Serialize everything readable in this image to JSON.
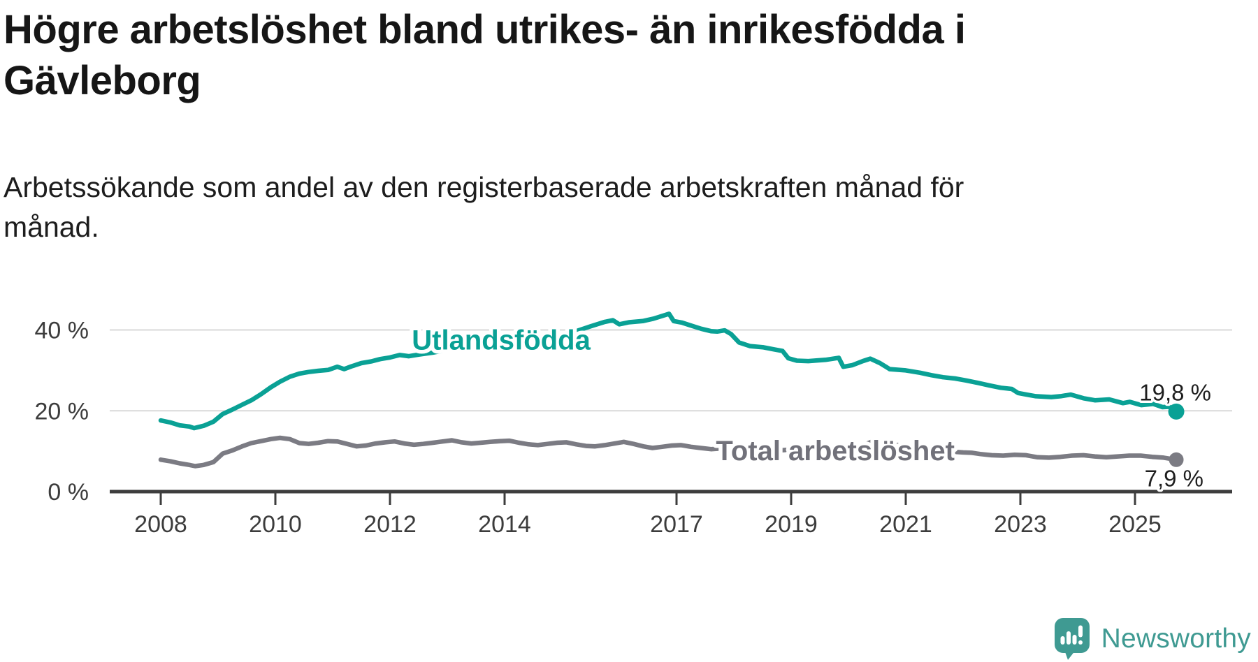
{
  "header": {
    "title_lines": [
      "Högre arbetslöshet bland utrikes- än inrikesfödda i",
      "Gävleborg"
    ],
    "subtitle_lines": [
      "Arbetssökande som andel av den registerbaserade arbetskraften månad för",
      "månad."
    ]
  },
  "branding": {
    "logo_text": "Newsworthy",
    "logo_icon": "newsworthy-speech-bubble-bar-chart-icon",
    "brand_color": "#3f9a92"
  },
  "chart_data": {
    "type": "line",
    "unit": "%",
    "grid": "horizontal-only",
    "x_axis": {
      "ticks": [
        {
          "year": 2008,
          "label": "2008"
        },
        {
          "year": 2010,
          "label": "2010"
        },
        {
          "year": 2012,
          "label": "2012"
        },
        {
          "year": 2014,
          "label": "2014"
        },
        {
          "year": 2017,
          "label": "2017"
        },
        {
          "year": 2019,
          "label": "2019"
        },
        {
          "year": 2021,
          "label": "2021"
        },
        {
          "year": 2023,
          "label": "2023"
        },
        {
          "year": 2025,
          "label": "2025"
        }
      ],
      "range": [
        2007.1,
        2026.7
      ]
    },
    "y_axis": {
      "ticks": [
        {
          "value": 0,
          "label": "0 %"
        },
        {
          "value": 20,
          "label": "20 %"
        },
        {
          "value": 40,
          "label": "40 %"
        }
      ],
      "range": [
        0,
        54
      ]
    },
    "series": [
      {
        "id": "total-arbetsloshet",
        "name": "Total arbetslöshet",
        "color": "#7b7b83",
        "label_color": "#71717a",
        "end_value": 7.9,
        "end_label": "7,9 %",
        "end_label_side": "below",
        "label_at": {
          "year": 2019.77,
          "pct": 7.75
        },
        "dot_radius": 10.5,
        "points": [
          [
            2008.0,
            7.9
          ],
          [
            2008.17,
            7.5
          ],
          [
            2008.33,
            7.0
          ],
          [
            2008.5,
            6.6
          ],
          [
            2008.6,
            6.3
          ],
          [
            2008.75,
            6.6
          ],
          [
            2008.92,
            7.3
          ],
          [
            2009.08,
            9.4
          ],
          [
            2009.25,
            10.2
          ],
          [
            2009.42,
            11.2
          ],
          [
            2009.58,
            12.0
          ],
          [
            2009.75,
            12.5
          ],
          [
            2009.92,
            13.0
          ],
          [
            2010.08,
            13.3
          ],
          [
            2010.25,
            13.0
          ],
          [
            2010.42,
            12.0
          ],
          [
            2010.58,
            11.8
          ],
          [
            2010.75,
            12.1
          ],
          [
            2010.92,
            12.5
          ],
          [
            2011.08,
            12.4
          ],
          [
            2011.25,
            11.8
          ],
          [
            2011.42,
            11.2
          ],
          [
            2011.58,
            11.4
          ],
          [
            2011.75,
            11.9
          ],
          [
            2011.92,
            12.2
          ],
          [
            2012.08,
            12.4
          ],
          [
            2012.25,
            11.9
          ],
          [
            2012.42,
            11.6
          ],
          [
            2012.58,
            11.8
          ],
          [
            2012.75,
            12.1
          ],
          [
            2012.92,
            12.4
          ],
          [
            2013.08,
            12.7
          ],
          [
            2013.25,
            12.2
          ],
          [
            2013.42,
            11.9
          ],
          [
            2013.58,
            12.1
          ],
          [
            2013.75,
            12.3
          ],
          [
            2013.92,
            12.5
          ],
          [
            2014.08,
            12.6
          ],
          [
            2014.25,
            12.1
          ],
          [
            2014.42,
            11.7
          ],
          [
            2014.58,
            11.5
          ],
          [
            2014.75,
            11.8
          ],
          [
            2014.92,
            12.1
          ],
          [
            2015.08,
            12.2
          ],
          [
            2015.25,
            11.7
          ],
          [
            2015.42,
            11.3
          ],
          [
            2015.58,
            11.2
          ],
          [
            2015.75,
            11.5
          ],
          [
            2015.92,
            11.9
          ],
          [
            2016.08,
            12.3
          ],
          [
            2016.25,
            11.8
          ],
          [
            2016.42,
            11.2
          ],
          [
            2016.58,
            10.8
          ],
          [
            2016.75,
            11.1
          ],
          [
            2016.92,
            11.4
          ],
          [
            2017.08,
            11.5
          ],
          [
            2017.25,
            11.1
          ],
          [
            2017.42,
            10.8
          ],
          [
            2017.6,
            10.5
          ],
          [
            2017.8,
            10.7
          ],
          [
            2018.0,
            11.0
          ],
          [
            2018.2,
            10.6
          ],
          [
            2018.4,
            10.2
          ],
          [
            2018.6,
            10.0
          ],
          [
            2018.8,
            10.2
          ],
          [
            2019.0,
            10.4
          ],
          [
            2019.2,
            10.1
          ],
          [
            2019.4,
            9.9
          ],
          [
            2019.6,
            9.8
          ],
          [
            2019.8,
            10.0
          ],
          [
            2020.0,
            10.2
          ],
          [
            2020.2,
            11.2
          ],
          [
            2020.4,
            12.3
          ],
          [
            2020.6,
            12.0
          ],
          [
            2020.8,
            11.6
          ],
          [
            2021.0,
            11.4
          ],
          [
            2021.2,
            11.0
          ],
          [
            2021.4,
            10.6
          ],
          [
            2021.6,
            10.2
          ],
          [
            2021.8,
            9.9
          ],
          [
            2022.0,
            9.7
          ],
          [
            2022.15,
            9.6
          ],
          [
            2022.3,
            9.3
          ],
          [
            2022.5,
            9.0
          ],
          [
            2022.7,
            8.9
          ],
          [
            2022.9,
            9.1
          ],
          [
            2023.1,
            9.0
          ],
          [
            2023.3,
            8.5
          ],
          [
            2023.5,
            8.4
          ],
          [
            2023.7,
            8.6
          ],
          [
            2023.9,
            8.9
          ],
          [
            2024.1,
            9.0
          ],
          [
            2024.3,
            8.7
          ],
          [
            2024.5,
            8.5
          ],
          [
            2024.7,
            8.7
          ],
          [
            2024.9,
            8.9
          ],
          [
            2025.1,
            8.9
          ],
          [
            2025.3,
            8.6
          ],
          [
            2025.5,
            8.4
          ],
          [
            2025.72,
            7.9
          ]
        ]
      },
      {
        "id": "utlandsfodda",
        "name": "Utlandsfödda",
        "color": "#0aa195",
        "label_color": "#0aa195",
        "end_value": 19.8,
        "end_label": "19,8 %",
        "end_label_side": "above",
        "label_at": {
          "year": 2013.94,
          "pct": 35.2
        },
        "dot_radius": 11.5,
        "points": [
          [
            2008.0,
            17.6
          ],
          [
            2008.17,
            17.1
          ],
          [
            2008.33,
            16.4
          ],
          [
            2008.5,
            16.1
          ],
          [
            2008.58,
            15.7
          ],
          [
            2008.75,
            16.3
          ],
          [
            2008.92,
            17.3
          ],
          [
            2009.08,
            19.2
          ],
          [
            2009.25,
            20.3
          ],
          [
            2009.42,
            21.5
          ],
          [
            2009.58,
            22.6
          ],
          [
            2009.75,
            24.1
          ],
          [
            2009.92,
            25.8
          ],
          [
            2010.08,
            27.2
          ],
          [
            2010.25,
            28.4
          ],
          [
            2010.42,
            29.2
          ],
          [
            2010.58,
            29.6
          ],
          [
            2010.75,
            29.9
          ],
          [
            2010.92,
            30.1
          ],
          [
            2011.08,
            30.9
          ],
          [
            2011.2,
            30.3
          ],
          [
            2011.33,
            31.0
          ],
          [
            2011.5,
            31.8
          ],
          [
            2011.67,
            32.2
          ],
          [
            2011.83,
            32.8
          ],
          [
            2012.0,
            33.2
          ],
          [
            2012.17,
            33.8
          ],
          [
            2012.33,
            33.5
          ],
          [
            2012.5,
            33.9
          ],
          [
            2012.75,
            34.4
          ],
          [
            2013.0,
            35.1
          ],
          [
            2013.25,
            35.4
          ],
          [
            2013.5,
            35.9
          ],
          [
            2013.75,
            36.3
          ],
          [
            2014.0,
            36.9
          ],
          [
            2014.25,
            37.1
          ],
          [
            2014.5,
            37.5
          ],
          [
            2014.75,
            37.9
          ],
          [
            2015.0,
            38.6
          ],
          [
            2015.25,
            39.7
          ],
          [
            2015.5,
            40.9
          ],
          [
            2015.75,
            42.0
          ],
          [
            2015.89,
            42.4
          ],
          [
            2016.0,
            41.4
          ],
          [
            2016.17,
            41.9
          ],
          [
            2016.41,
            42.2
          ],
          [
            2016.6,
            42.8
          ],
          [
            2016.87,
            44.0
          ],
          [
            2016.95,
            42.2
          ],
          [
            2017.1,
            41.8
          ],
          [
            2017.23,
            41.2
          ],
          [
            2017.43,
            40.3
          ],
          [
            2017.6,
            39.7
          ],
          [
            2017.71,
            39.6
          ],
          [
            2017.84,
            39.9
          ],
          [
            2017.95,
            39.0
          ],
          [
            2018.09,
            36.9
          ],
          [
            2018.28,
            36.0
          ],
          [
            2018.52,
            35.7
          ],
          [
            2018.7,
            35.2
          ],
          [
            2018.85,
            34.8
          ],
          [
            2018.95,
            33.0
          ],
          [
            2019.1,
            32.4
          ],
          [
            2019.3,
            32.3
          ],
          [
            2019.6,
            32.6
          ],
          [
            2019.83,
            33.1
          ],
          [
            2019.91,
            30.9
          ],
          [
            2020.07,
            31.3
          ],
          [
            2020.25,
            32.3
          ],
          [
            2020.38,
            32.9
          ],
          [
            2020.55,
            31.8
          ],
          [
            2020.72,
            30.3
          ],
          [
            2020.9,
            30.1
          ],
          [
            2021.0,
            30.0
          ],
          [
            2021.25,
            29.4
          ],
          [
            2021.45,
            28.8
          ],
          [
            2021.65,
            28.3
          ],
          [
            2021.86,
            28.0
          ],
          [
            2022.05,
            27.5
          ],
          [
            2022.26,
            26.9
          ],
          [
            2022.45,
            26.3
          ],
          [
            2022.66,
            25.7
          ],
          [
            2022.85,
            25.4
          ],
          [
            2022.96,
            24.4
          ],
          [
            2023.15,
            23.9
          ],
          [
            2023.27,
            23.6
          ],
          [
            2023.54,
            23.4
          ],
          [
            2023.7,
            23.6
          ],
          [
            2023.88,
            24.0
          ],
          [
            2024.1,
            23.1
          ],
          [
            2024.3,
            22.6
          ],
          [
            2024.55,
            22.8
          ],
          [
            2024.79,
            21.9
          ],
          [
            2024.91,
            22.2
          ],
          [
            2025.11,
            21.4
          ],
          [
            2025.32,
            21.7
          ],
          [
            2025.48,
            20.9
          ],
          [
            2025.6,
            21.0
          ],
          [
            2025.72,
            19.8
          ]
        ]
      }
    ]
  }
}
